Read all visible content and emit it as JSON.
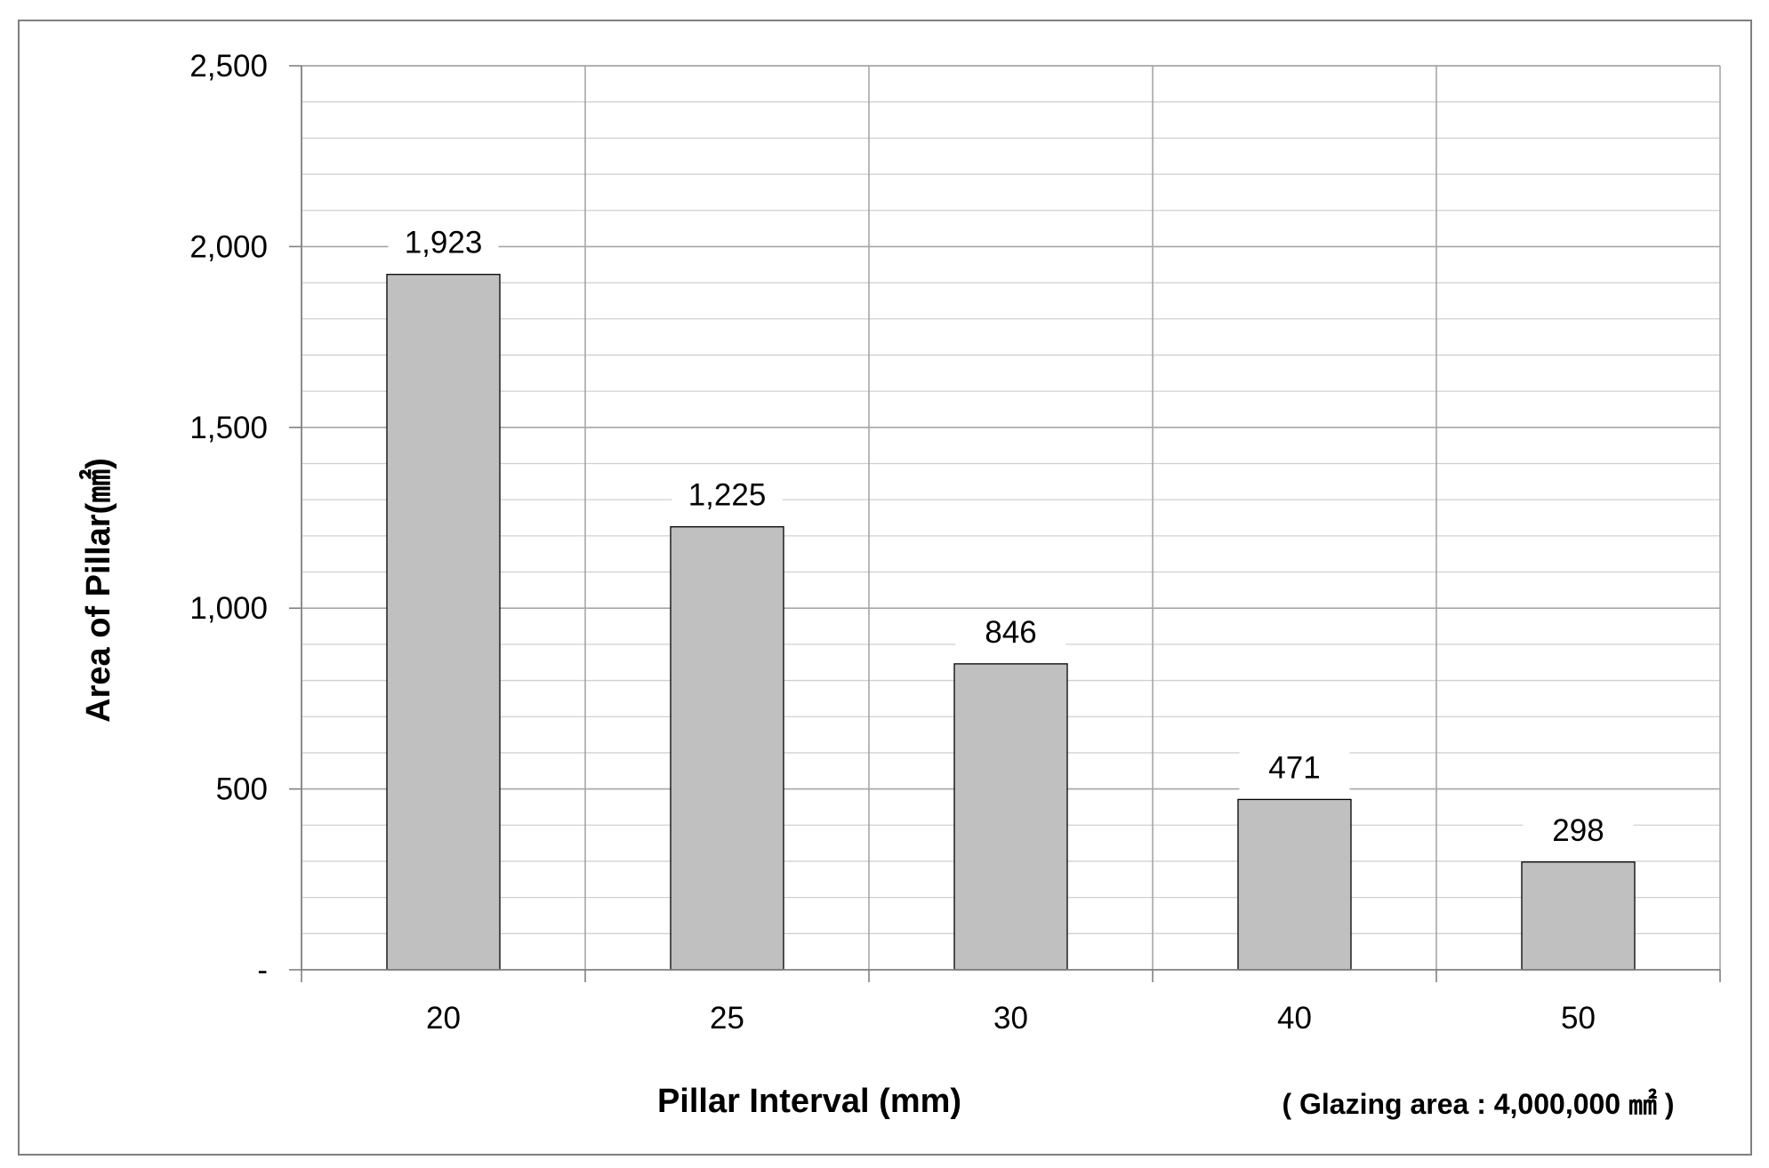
{
  "chart_data": {
    "type": "bar",
    "categories": [
      "20",
      "25",
      "30",
      "40",
      "50"
    ],
    "values": [
      1923,
      1225,
      846,
      471,
      298
    ],
    "value_labels": [
      "1,923",
      "1,225",
      "846",
      "471",
      "298"
    ],
    "ylabel": "Area of Pillar(㎟)",
    "xlabel": "Pillar Interval (mm)",
    "annotation": "( Glazing area : 4,000,000 ㎟ )",
    "ylim": [
      0,
      2500
    ],
    "yticks": [
      0,
      500,
      1000,
      1500,
      2000,
      2500
    ],
    "ytick_labels": [
      "-",
      "500",
      "1,000",
      "1,500",
      "2,000",
      "2,500"
    ],
    "minor_gridline_step": 100,
    "grid": true,
    "bar_color": "#c0c0c0",
    "bar_edge_color": "#000000",
    "major_grid_color": "#a6a6a6",
    "minor_grid_color": "#d0d0d0"
  }
}
